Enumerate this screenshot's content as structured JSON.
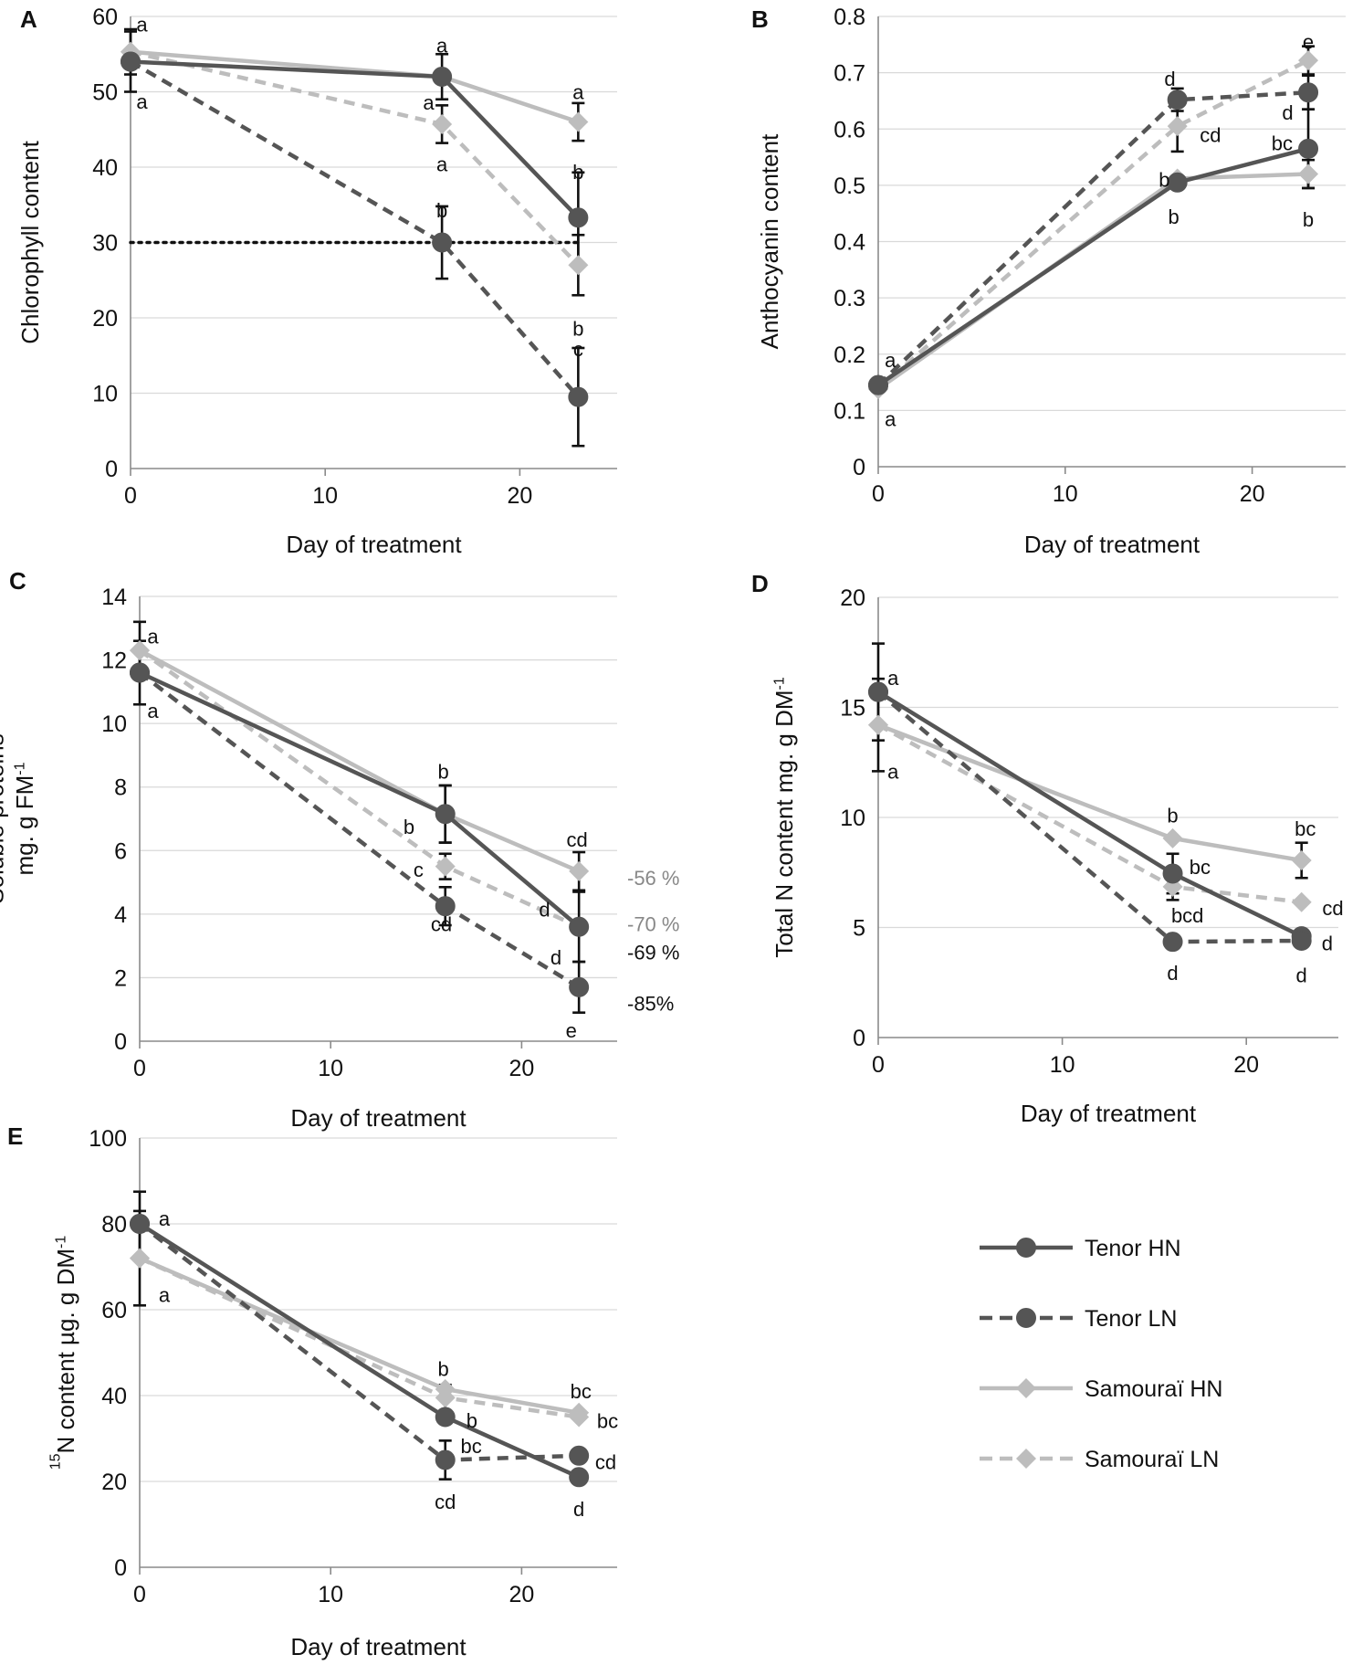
{
  "colors": {
    "tenor": "#555555",
    "samourai": "#bdbdbd",
    "grid": "#d9d9d9",
    "axis": "#8a8a8a"
  },
  "legend": [
    {
      "label": "Tenor HN",
      "series": "tenor_hn"
    },
    {
      "label": "Tenor LN",
      "series": "tenor_ln"
    },
    {
      "label": "Samouraï HN",
      "series": "samourai_hn"
    },
    {
      "label": "Samouraï LN",
      "series": "samourai_ln"
    }
  ],
  "chart_data": [
    {
      "id": "A",
      "panel_label": "A",
      "type": "line",
      "xlabel": "Day of treatment",
      "ylabel": [
        "Chlorophyll content"
      ],
      "xlim": [
        0,
        25
      ],
      "ylim": [
        0,
        60
      ],
      "xticks": [
        0,
        10,
        20
      ],
      "yticks": [
        0,
        10,
        20,
        30,
        40,
        50,
        60
      ],
      "reference_line": {
        "y": 30,
        "x": [
          0,
          23
        ],
        "style": "dotted"
      },
      "series": [
        {
          "key": "tenor_hn",
          "name": "Tenor HN",
          "x": [
            0,
            16,
            23
          ],
          "y": [
            54,
            52,
            33.3
          ],
          "err": [
            0,
            0,
            6
          ]
        },
        {
          "key": "tenor_ln",
          "name": "Tenor LN",
          "x": [
            0,
            16,
            23
          ],
          "y": [
            54,
            30,
            9.5
          ],
          "err": [
            4,
            4.8,
            6.5
          ]
        },
        {
          "key": "samourai_hn",
          "name": "Samouraï HN",
          "x": [
            0,
            16,
            23
          ],
          "y": [
            55.3,
            52,
            46
          ],
          "err": [
            3,
            3,
            2.5
          ]
        },
        {
          "key": "samourai_ln",
          "name": "Samouraï LN",
          "x": [
            0,
            16,
            23
          ],
          "y": [
            55.3,
            45.7,
            27
          ],
          "err": [
            0,
            2.5,
            4
          ]
        }
      ],
      "annotations": [
        {
          "text": "a",
          "x": 0.3,
          "y": 59,
          "anchor": "start"
        },
        {
          "text": "a",
          "x": 0.3,
          "y": 48.7,
          "anchor": "start"
        },
        {
          "text": "a",
          "x": 16,
          "y": 56.2,
          "anchor": "middle"
        },
        {
          "text": "a",
          "x": 15.6,
          "y": 48.6,
          "anchor": "end"
        },
        {
          "text": "a",
          "x": 16,
          "y": 40.4,
          "anchor": "middle"
        },
        {
          "text": "b",
          "x": 16,
          "y": 34.3,
          "anchor": "middle"
        },
        {
          "text": "a",
          "x": 23,
          "y": 50,
          "anchor": "middle"
        },
        {
          "text": "b",
          "x": 23,
          "y": 39.4,
          "anchor": "middle"
        },
        {
          "text": "b",
          "x": 23,
          "y": 18.6,
          "anchor": "middle"
        },
        {
          "text": "c",
          "x": 23,
          "y": 15.9,
          "anchor": "middle"
        }
      ]
    },
    {
      "id": "B",
      "panel_label": "B",
      "type": "line",
      "xlabel": "Day of treatment",
      "ylabel": [
        "Anthocyanin content"
      ],
      "xlim": [
        0,
        25
      ],
      "ylim": [
        0,
        0.8
      ],
      "xticks": [
        0,
        10,
        20
      ],
      "yticks": [
        0,
        0.1,
        0.2,
        0.3,
        0.4,
        0.5,
        0.6,
        0.7,
        0.8
      ],
      "series": [
        {
          "key": "tenor_hn",
          "name": "Tenor HN",
          "x": [
            0,
            16,
            23
          ],
          "y": [
            0.145,
            0.505,
            0.565
          ],
          "err": [
            0,
            0,
            0.07
          ]
        },
        {
          "key": "tenor_ln",
          "name": "Tenor LN",
          "x": [
            0,
            16,
            23
          ],
          "y": [
            0.145,
            0.652,
            0.665
          ],
          "err": [
            0,
            0.02,
            0.03
          ]
        },
        {
          "key": "samourai_hn",
          "name": "Samouraï HN",
          "x": [
            0,
            16,
            23
          ],
          "y": [
            0.138,
            0.512,
            0.52
          ],
          "err": [
            0,
            0,
            0.025
          ]
        },
        {
          "key": "samourai_ln",
          "name": "Samouraï LN",
          "x": [
            0,
            16,
            23
          ],
          "y": [
            0.138,
            0.605,
            0.722
          ],
          "err": [
            0,
            0.045,
            0.025
          ]
        }
      ],
      "annotations": [
        {
          "text": "a",
          "x": 0.35,
          "y": 0.19,
          "anchor": "start"
        },
        {
          "text": "a",
          "x": 0.35,
          "y": 0.085,
          "anchor": "start"
        },
        {
          "text": "d",
          "x": 15.6,
          "y": 0.69,
          "anchor": "middle"
        },
        {
          "text": "cd",
          "x": 17.2,
          "y": 0.59,
          "anchor": "start"
        },
        {
          "text": "b",
          "x": 15.3,
          "y": 0.51,
          "anchor": "middle"
        },
        {
          "text": "b",
          "x": 15.8,
          "y": 0.445,
          "anchor": "middle"
        },
        {
          "text": "e",
          "x": 23,
          "y": 0.755,
          "anchor": "middle"
        },
        {
          "text": "d",
          "x": 21.9,
          "y": 0.63,
          "anchor": "middle"
        },
        {
          "text": "bc",
          "x": 21.6,
          "y": 0.575,
          "anchor": "middle"
        },
        {
          "text": "b",
          "x": 23,
          "y": 0.44,
          "anchor": "middle"
        }
      ]
    },
    {
      "id": "C",
      "panel_label": "C",
      "type": "line",
      "xlabel": "Day of treatment",
      "ylabel": [
        "Soluble proteins",
        "mg. g FM",
        "-1"
      ],
      "xlim": [
        0,
        25
      ],
      "ylim": [
        0,
        14
      ],
      "xticks": [
        0,
        10,
        20
      ],
      "yticks": [
        0,
        2,
        4,
        6,
        8,
        10,
        12,
        14
      ],
      "series": [
        {
          "key": "tenor_hn",
          "name": "Tenor HN",
          "x": [
            0,
            16,
            23
          ],
          "y": [
            11.6,
            7.15,
            3.6
          ],
          "err": [
            0,
            0.9,
            1.1
          ]
        },
        {
          "key": "tenor_ln",
          "name": "Tenor LN",
          "x": [
            0,
            16,
            23
          ],
          "y": [
            11.6,
            4.25,
            1.7
          ],
          "err": [
            1,
            0.6,
            0.8
          ]
        },
        {
          "key": "samourai_hn",
          "name": "Samouraï HN",
          "x": [
            0,
            16,
            23
          ],
          "y": [
            12.3,
            7.15,
            5.35
          ],
          "err": [
            0.9,
            0.9,
            0.6
          ]
        },
        {
          "key": "samourai_ln",
          "name": "Samouraï LN",
          "x": [
            0,
            16,
            23
          ],
          "y": [
            12.3,
            5.5,
            3.6
          ],
          "err": [
            0,
            0.4,
            0
          ]
        }
      ],
      "annotations": [
        {
          "text": "a",
          "x": 0.4,
          "y": 12.75,
          "anchor": "start"
        },
        {
          "text": "a",
          "x": 0.4,
          "y": 10.4,
          "anchor": "start"
        },
        {
          "text": "b",
          "x": 15.9,
          "y": 8.5,
          "anchor": "middle"
        },
        {
          "text": "b",
          "x": 14.1,
          "y": 6.75,
          "anchor": "middle"
        },
        {
          "text": "c",
          "x": 14.6,
          "y": 5.4,
          "anchor": "middle"
        },
        {
          "text": "cd",
          "x": 15.8,
          "y": 3.7,
          "anchor": "middle"
        },
        {
          "text": "cd",
          "x": 22.9,
          "y": 6.35,
          "anchor": "middle"
        },
        {
          "text": "d",
          "x": 21.2,
          "y": 4.15,
          "anchor": "middle"
        },
        {
          "text": "d",
          "x": 21.8,
          "y": 2.65,
          "anchor": "middle"
        },
        {
          "text": "e",
          "x": 22.6,
          "y": 0.35,
          "anchor": "middle"
        }
      ],
      "percent_labels": [
        {
          "text": "-56 %",
          "y": 5.15,
          "series": "samourai_hn"
        },
        {
          "text": "-70 %",
          "y": 3.7,
          "series": "samourai_ln"
        },
        {
          "text": "-69 %",
          "y": 2.8,
          "series": "tenor_hn"
        },
        {
          "text": "-85%",
          "y": 1.2,
          "series": "tenor_ln"
        }
      ]
    },
    {
      "id": "D",
      "panel_label": "D",
      "type": "line",
      "xlabel": "Day of treatment",
      "ylabel": [
        "Total N content mg. g DM",
        "-1"
      ],
      "xlim": [
        0,
        25
      ],
      "ylim": [
        0,
        20
      ],
      "xticks": [
        0,
        10,
        20
      ],
      "yticks": [
        0,
        5,
        10,
        15,
        20
      ],
      "series": [
        {
          "key": "tenor_hn",
          "name": "Tenor HN",
          "x": [
            0,
            16,
            23
          ],
          "y": [
            15.7,
            7.45,
            4.6
          ],
          "err": [
            2.2,
            0.9,
            0
          ]
        },
        {
          "key": "tenor_ln",
          "name": "Tenor LN",
          "x": [
            0,
            16,
            23
          ],
          "y": [
            15.7,
            4.35,
            4.4
          ],
          "err": [
            0,
            0,
            0
          ]
        },
        {
          "key": "samourai_hn",
          "name": "Samouraï HN",
          "x": [
            0,
            16,
            23
          ],
          "y": [
            14.2,
            9.05,
            8.05
          ],
          "err": [
            0,
            0,
            0.8
          ]
        },
        {
          "key": "samourai_ln",
          "name": "Samouraï LN",
          "x": [
            0,
            16,
            23
          ],
          "y": [
            14.2,
            6.85,
            6.15
          ],
          "err": [
            2.1,
            0.6,
            0
          ]
        }
      ],
      "annotations": [
        {
          "text": "a",
          "x": 0.5,
          "y": 16.35,
          "anchor": "start"
        },
        {
          "text": "a",
          "x": 0.5,
          "y": 12.1,
          "anchor": "start"
        },
        {
          "text": "b",
          "x": 16,
          "y": 10.1,
          "anchor": "middle"
        },
        {
          "text": "bc",
          "x": 16.9,
          "y": 7.75,
          "anchor": "start"
        },
        {
          "text": "bcd",
          "x": 16.8,
          "y": 5.55,
          "anchor": "middle"
        },
        {
          "text": "d",
          "x": 16,
          "y": 2.95,
          "anchor": "middle"
        },
        {
          "text": "bc",
          "x": 23.2,
          "y": 9.5,
          "anchor": "middle"
        },
        {
          "text": "cd",
          "x": 24.7,
          "y": 5.9,
          "anchor": "middle"
        },
        {
          "text": "d",
          "x": 24.4,
          "y": 4.3,
          "anchor": "middle"
        },
        {
          "text": "d",
          "x": 23,
          "y": 2.85,
          "anchor": "middle"
        }
      ]
    },
    {
      "id": "E",
      "panel_label": "E",
      "type": "line",
      "xlabel": "Day of treatment",
      "ylabel": [
        "N content µg. g DM",
        "-1",
        "15"
      ],
      "xlim": [
        0,
        25
      ],
      "ylim": [
        0,
        100
      ],
      "xticks": [
        0,
        10,
        20
      ],
      "yticks": [
        0,
        20,
        40,
        60,
        80,
        100
      ],
      "series": [
        {
          "key": "tenor_hn",
          "name": "Tenor HN",
          "x": [
            0,
            16,
            23
          ],
          "y": [
            80,
            35,
            21
          ],
          "err": [
            7.5,
            0,
            0
          ]
        },
        {
          "key": "tenor_ln",
          "name": "Tenor LN",
          "x": [
            0,
            16,
            23
          ],
          "y": [
            80,
            25,
            26
          ],
          "err": [
            0,
            4.5,
            0
          ]
        },
        {
          "key": "samourai_hn",
          "name": "Samouraï HN",
          "x": [
            0,
            16,
            23
          ],
          "y": [
            72,
            41.5,
            36
          ],
          "err": [
            0,
            0,
            0
          ]
        },
        {
          "key": "samourai_ln",
          "name": "Samouraï LN",
          "x": [
            0,
            16,
            23
          ],
          "y": [
            72,
            39.5,
            35
          ],
          "err": [
            11,
            3,
            0
          ]
        }
      ],
      "annotations": [
        {
          "text": "a",
          "x": 1,
          "y": 81.3,
          "anchor": "start"
        },
        {
          "text": "a",
          "x": 1,
          "y": 63.5,
          "anchor": "start"
        },
        {
          "text": "b",
          "x": 15.9,
          "y": 46.3,
          "anchor": "middle"
        },
        {
          "text": "b",
          "x": 17.1,
          "y": 34.3,
          "anchor": "start"
        },
        {
          "text": "bc",
          "x": 16.8,
          "y": 28.3,
          "anchor": "start"
        },
        {
          "text": "cd",
          "x": 16,
          "y": 15.3,
          "anchor": "middle"
        },
        {
          "text": "bc",
          "x": 23.1,
          "y": 41.1,
          "anchor": "middle"
        },
        {
          "text": "bc",
          "x": 24.5,
          "y": 34.2,
          "anchor": "middle"
        },
        {
          "text": "cd",
          "x": 24.4,
          "y": 24.6,
          "anchor": "middle"
        },
        {
          "text": "d",
          "x": 23,
          "y": 13.6,
          "anchor": "middle"
        }
      ]
    }
  ]
}
